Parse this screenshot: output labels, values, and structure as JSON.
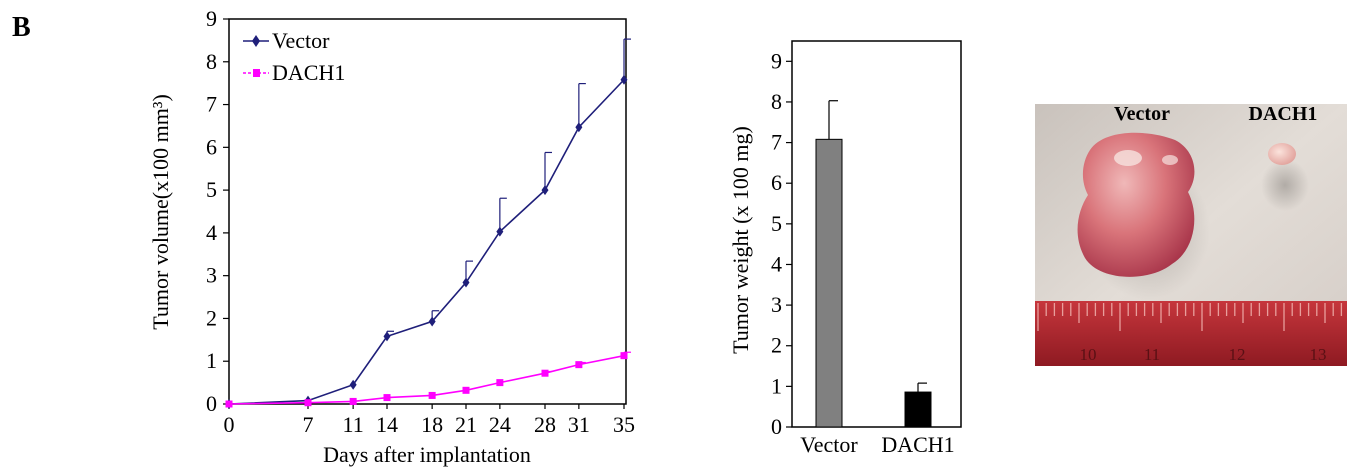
{
  "panel_label": "B",
  "colors": {
    "vector_line": "#1f1f7a",
    "dach1_line": "#ff00ff",
    "vector_bar": "#808080",
    "dach1_bar": "#000000",
    "ruler_red": "#b8232b",
    "background_photo": "#d9d3cd"
  },
  "chart_data": [
    {
      "type": "line",
      "xlabel": "Days after implantation",
      "ylabel": "Tumor volume(x100 mm³)",
      "x": [
        0,
        7,
        11,
        14,
        18,
        21,
        24,
        28,
        31,
        35
      ],
      "xticks": [
        "0",
        "7",
        "11",
        "14",
        "18",
        "21",
        "24",
        "28",
        "31",
        "35"
      ],
      "ylim": [
        0,
        9
      ],
      "yticks": [
        "0",
        "1",
        "2",
        "3",
        "4",
        "5",
        "6",
        "7",
        "8",
        "9"
      ],
      "legend_position": "top-left",
      "series": [
        {
          "name": "Vector",
          "marker": "diamond",
          "values": [
            0,
            0.08,
            0.45,
            1.58,
            1.93,
            2.84,
            4.03,
            5.0,
            6.47,
            7.58
          ],
          "error": [
            0,
            0,
            0,
            0.12,
            0.25,
            0.5,
            0.78,
            0.88,
            1.02,
            0.95
          ]
        },
        {
          "name": "DACH1",
          "marker": "square",
          "values": [
            0,
            0.03,
            0.06,
            0.15,
            0.2,
            0.32,
            0.5,
            0.72,
            0.92,
            1.13
          ],
          "error": [
            0,
            0,
            0,
            0,
            0,
            0,
            0,
            0.04,
            0.05,
            0.08
          ]
        }
      ]
    },
    {
      "type": "bar",
      "ylabel": "Tumor weight (x 100 mg)",
      "categories": [
        "Vector",
        "DACH1"
      ],
      "values": [
        7.08,
        0.86
      ],
      "error": [
        0.95,
        0.22
      ],
      "ylim": [
        0,
        9.5
      ],
      "yticks": [
        "0",
        "1",
        "2",
        "3",
        "4",
        "5",
        "6",
        "7",
        "8",
        "9"
      ]
    }
  ],
  "photo": {
    "labels": [
      "Vector",
      "DACH1"
    ],
    "ruler_numbers": [
      "10",
      "11",
      "12",
      "13"
    ]
  }
}
